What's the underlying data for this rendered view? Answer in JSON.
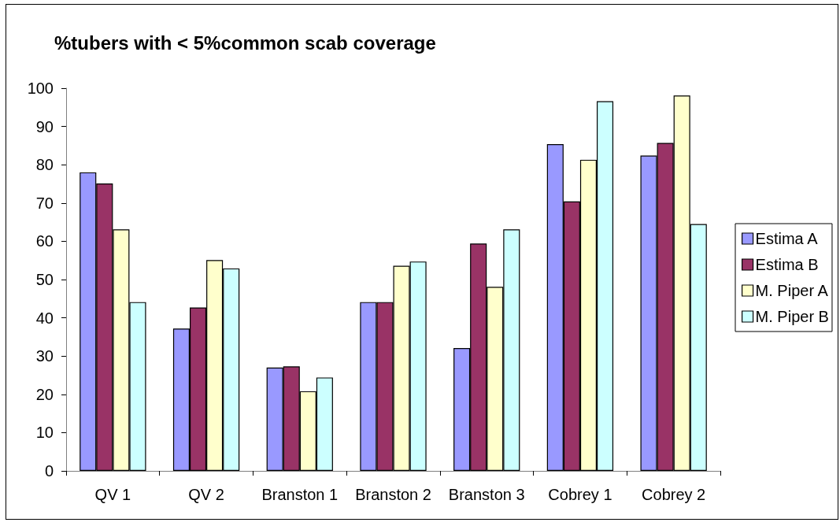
{
  "chart_data": {
    "type": "bar",
    "title": "%tubers with < 5%common scab coverage",
    "categories": [
      "QV 1",
      "QV 2",
      "Branston 1",
      "Branston 2",
      "Branston 3",
      "Cobrey 1",
      "Cobrey 2"
    ],
    "series": [
      {
        "name": "Estima A",
        "color": "#9999ff",
        "values": [
          78,
          37.2,
          27,
          44.1,
          32.1,
          85.4,
          82.4
        ]
      },
      {
        "name": "Estima B",
        "color": "#993366",
        "values": [
          75.1,
          42.7,
          27.3,
          44.1,
          59.4,
          70.4,
          85.7
        ]
      },
      {
        "name": "M. Piper A",
        "color": "#ffffcc",
        "values": [
          63.1,
          55.1,
          20.8,
          53.6,
          48.1,
          81.3,
          98.1
        ]
      },
      {
        "name": "M. Piper B",
        "color": "#ccffff",
        "values": [
          44.1,
          52.9,
          24.4,
          54.7,
          63.1,
          96.6,
          64.5
        ]
      }
    ],
    "ylim": [
      0,
      100
    ],
    "yticks": [
      0,
      10,
      20,
      30,
      40,
      50,
      60,
      70,
      80,
      90,
      100
    ],
    "legend": "right"
  }
}
